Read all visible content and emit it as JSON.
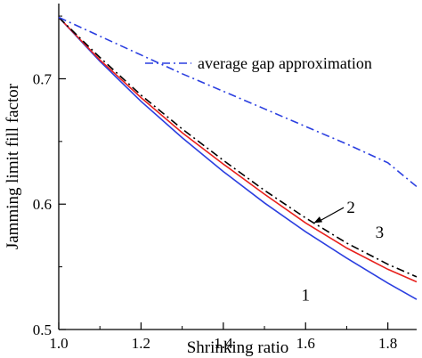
{
  "chart_data": {
    "type": "line",
    "xlabel": "Shrinking ratio",
    "ylabel": "Jamming limit fill factor",
    "xlim": [
      1.0,
      1.87
    ],
    "ylim": [
      0.5,
      0.76
    ],
    "x_ticks": [
      1.0,
      1.2,
      1.4,
      1.6,
      1.8
    ],
    "y_ticks": [
      0.5,
      0.6,
      0.7
    ],
    "x_tick_labels": [
      "1.0",
      "1.2",
      "1.4",
      "1.6",
      "1.8"
    ],
    "y_tick_labels": [
      "0.5",
      "0.6",
      "0.7"
    ],
    "legend_position": "top-right",
    "series": [
      {
        "name": "",
        "curve_label": "1",
        "color": "#2b3fe0",
        "style": "solid",
        "x": [
          1.0,
          1.1,
          1.2,
          1.3,
          1.4,
          1.5,
          1.6,
          1.7,
          1.8,
          1.87
        ],
        "y": [
          0.749,
          0.714,
          0.682,
          0.653,
          0.626,
          0.601,
          0.578,
          0.557,
          0.537,
          0.524
        ]
      },
      {
        "name": "",
        "curve_label": "2",
        "color": "#e8201c",
        "style": "solid",
        "x": [
          1.0,
          1.1,
          1.2,
          1.3,
          1.4,
          1.5,
          1.6,
          1.7,
          1.8,
          1.87
        ],
        "y": [
          0.749,
          0.715,
          0.685,
          0.657,
          0.632,
          0.608,
          0.585,
          0.565,
          0.548,
          0.538
        ]
      },
      {
        "name": "",
        "curve_label": "3",
        "color": "#000000",
        "style": "dashdot",
        "x": [
          1.0,
          1.1,
          1.2,
          1.3,
          1.4,
          1.5,
          1.6,
          1.7,
          1.8,
          1.87
        ],
        "y": [
          0.749,
          0.717,
          0.687,
          0.66,
          0.635,
          0.611,
          0.589,
          0.569,
          0.552,
          0.542
        ]
      },
      {
        "name": "average gap approximation",
        "color": "#2b3fe0",
        "style": "dashdot",
        "x": [
          1.0,
          1.1,
          1.2,
          1.3,
          1.4,
          1.5,
          1.6,
          1.7,
          1.8,
          1.87
        ],
        "y": [
          0.749,
          0.734,
          0.719,
          0.704,
          0.69,
          0.676,
          0.662,
          0.648,
          0.633,
          0.614
        ]
      }
    ],
    "annotations": [
      {
        "text": "1",
        "x": 1.6,
        "y": 0.523
      },
      {
        "text": "2",
        "x": 1.71,
        "y": 0.593,
        "arrow_to": [
          1.62,
          0.585
        ]
      },
      {
        "text": "3",
        "x": 1.78,
        "y": 0.573
      }
    ]
  }
}
